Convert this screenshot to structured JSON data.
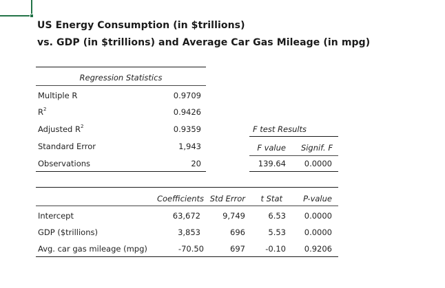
{
  "title_line1": "US Energy Consumption (in $trillions)",
  "title_line2": "vs. GDP (in $trillions) and Average Car Gas Mileage (in mpg)",
  "regression": {
    "header": "Regression Statistics",
    "rows": [
      {
        "label": "Multiple R",
        "value": "0.9709"
      },
      {
        "label": "R",
        "sup": "2",
        "value": "0.9426"
      },
      {
        "label": "Adjusted R",
        "sup": "2",
        "value": "0.9359"
      },
      {
        "label": "Standard Error",
        "value": "1,943"
      },
      {
        "label": "Observations",
        "value": "20"
      }
    ]
  },
  "ftest": {
    "header": "F test Results",
    "col_fvalue": "F value",
    "col_signif": "Signif. F",
    "fvalue": "139.64",
    "signif": "0.0000"
  },
  "coefficients": {
    "headers": [
      "Coefficients",
      "Std Error",
      "t Stat",
      "P-value"
    ],
    "rows": [
      {
        "label": "Intercept",
        "coef": "63,672",
        "stderr": "9,749",
        "tstat": "6.53",
        "pvalue": "0.0000"
      },
      {
        "label": "GDP ($trillions)",
        "coef": "3,853",
        "stderr": "696",
        "tstat": "5.53",
        "pvalue": "0.0000"
      },
      {
        "label": "Avg. car gas mileage (mpg)",
        "coef": "-70.50",
        "stderr": "697",
        "tstat": "-0.10",
        "pvalue": "0.9206"
      }
    ]
  }
}
